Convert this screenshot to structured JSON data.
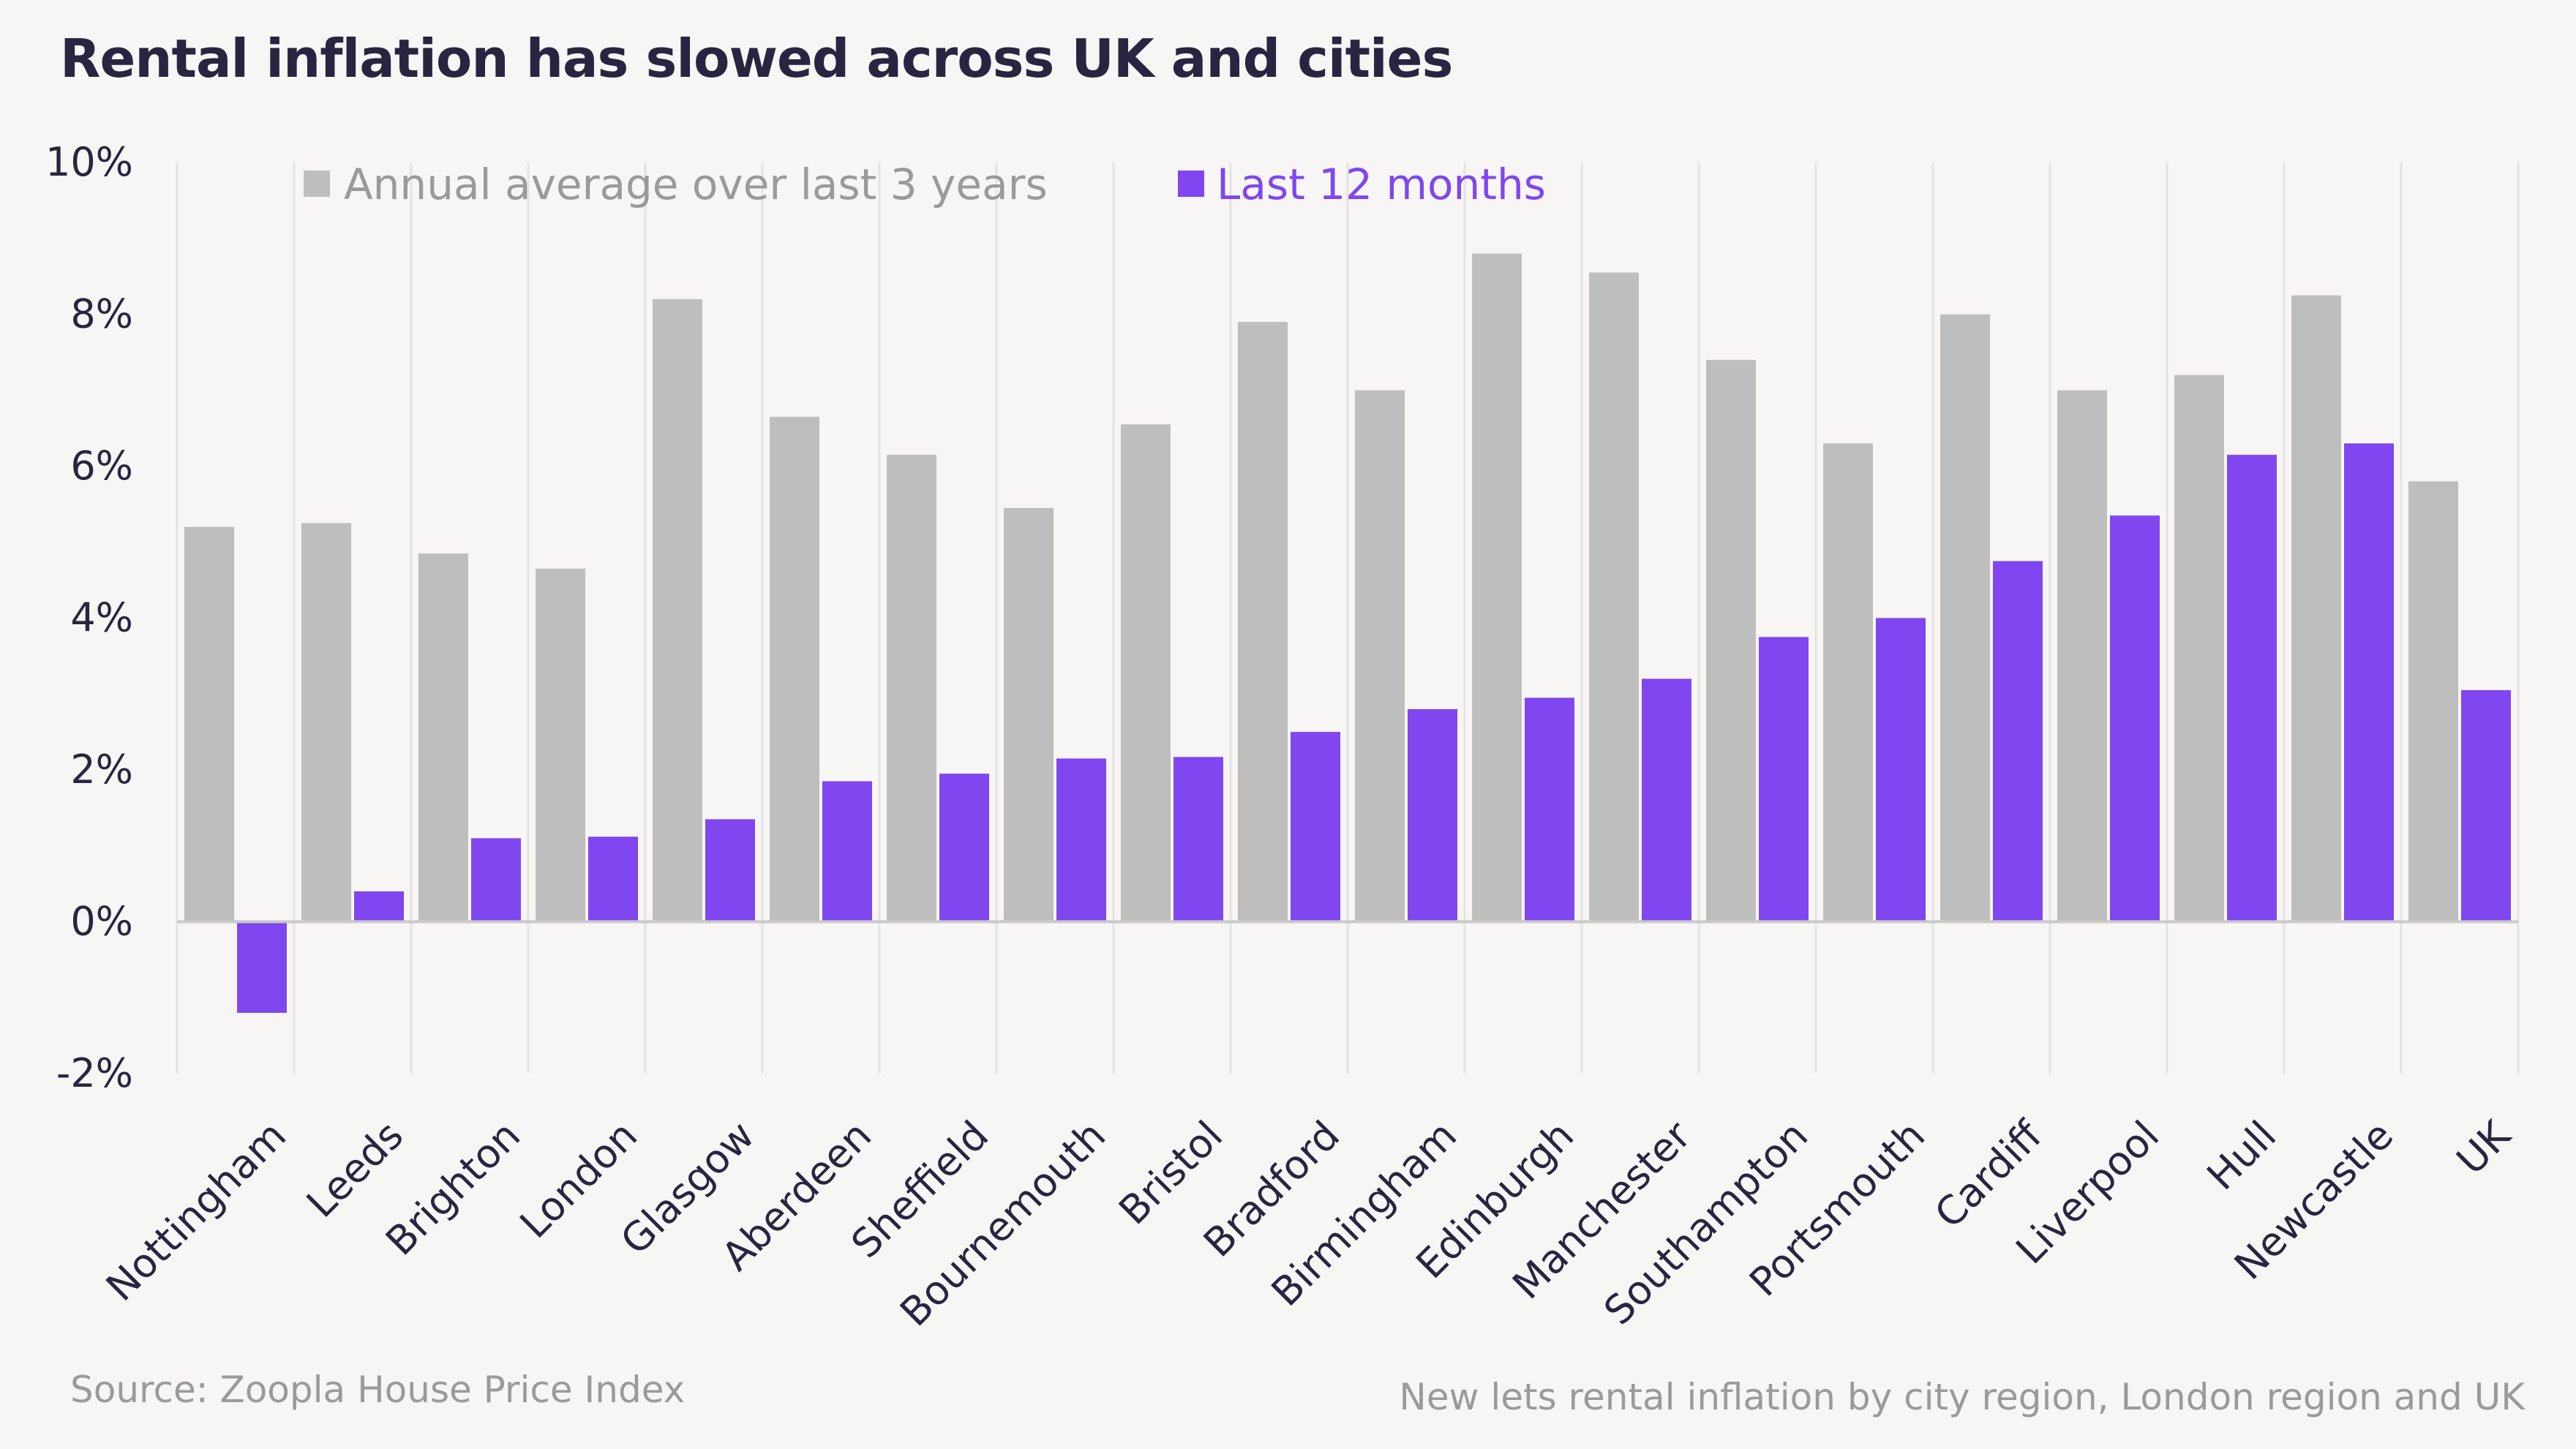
{
  "title": "Rental inflation has slowed across UK and cities",
  "source": "Source: Zoopla House Price Index",
  "footnote": "New lets rental inflation by city region, London region and UK",
  "colors": {
    "series_a": "#bebebe",
    "series_b": "#8046f0",
    "grid": "#e4e3e2",
    "zero_line": "#c9c9c9",
    "text": "#2a2440",
    "muted": "#9a9a9a"
  },
  "chart_data": {
    "type": "bar",
    "categories": [
      "Nottingham",
      "Leeds",
      "Brighton",
      "London",
      "Glasgow",
      "Aberdeen",
      "Sheffield",
      "Bournemouth",
      "Bristol",
      "Bradford",
      "Birmingham",
      "Edinburgh",
      "Manchester",
      "Southampton",
      "Portsmouth",
      "Cardiff",
      "Liverpool",
      "Hull",
      "Newcastle",
      "UK"
    ],
    "series": [
      {
        "name": "Annual average over last 3 years",
        "values": [
          5.2,
          5.25,
          4.85,
          4.65,
          8.2,
          6.65,
          6.15,
          5.45,
          6.55,
          7.9,
          7.0,
          8.8,
          8.55,
          7.4,
          6.3,
          8.0,
          7.0,
          7.2,
          8.25,
          5.8
        ]
      },
      {
        "name": "Last 12 months",
        "values": [
          -1.2,
          0.4,
          1.1,
          1.12,
          1.35,
          1.85,
          1.95,
          2.15,
          2.17,
          2.5,
          2.8,
          2.95,
          3.2,
          3.75,
          4.0,
          4.75,
          5.35,
          6.15,
          6.3,
          3.05
        ]
      }
    ],
    "yticks": [
      "10%",
      "8%",
      "6%",
      "4%",
      "2%",
      "0%",
      "-2%"
    ],
    "ytick_values": [
      10,
      8,
      6,
      4,
      2,
      0,
      -2
    ],
    "ylim": [
      -2,
      10
    ],
    "legend_position": "top-left",
    "grid": "vertical"
  }
}
